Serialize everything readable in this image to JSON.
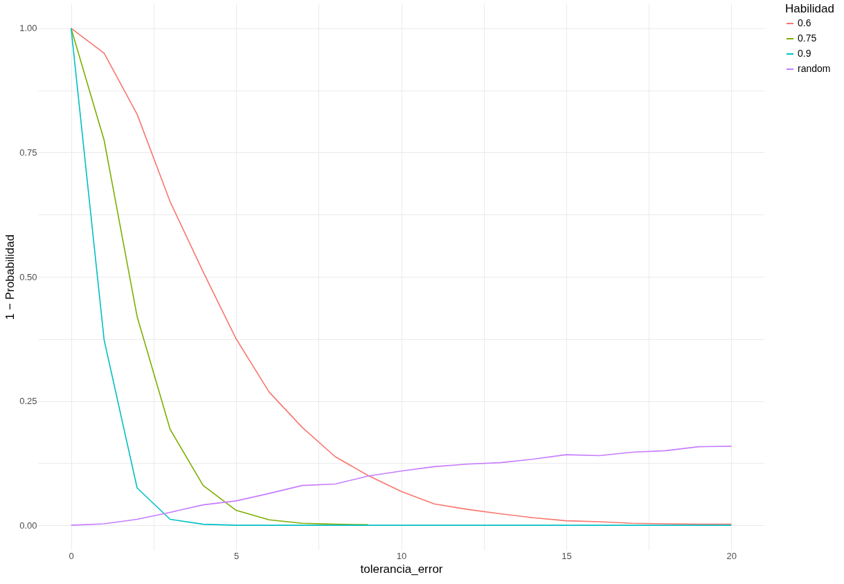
{
  "chart_data": {
    "type": "line",
    "xlabel": "tolerancia_error",
    "ylabel": "1 − Probabilidad",
    "legend_title": "Habilidad",
    "legend": "right",
    "grid": true,
    "line_style": "solid",
    "x": [
      0,
      1,
      2,
      3,
      4,
      5,
      6,
      7,
      8,
      9,
      10,
      11,
      12,
      13,
      14,
      15,
      16,
      17,
      18,
      19,
      20
    ],
    "xlim": [
      -1,
      21
    ],
    "ylim": [
      -0.05,
      1.05
    ],
    "xticks": [
      0,
      {
        "value": 2.5,
        "label": null
      },
      5,
      {
        "value": 7.5,
        "label": null
      },
      10,
      {
        "value": 12.5,
        "label": null
      },
      15,
      {
        "value": 17.5,
        "label": null
      },
      20
    ],
    "yticks": [
      {
        "value": 0,
        "label": "0.00"
      },
      {
        "value": 0.125,
        "label": null
      },
      {
        "value": 0.25,
        "label": "0.25"
      },
      {
        "value": 0.375,
        "label": null
      },
      {
        "value": 0.5,
        "label": "0.50"
      },
      {
        "value": 0.625,
        "label": null
      },
      {
        "value": 0.75,
        "label": "0.75"
      },
      {
        "value": 0.875,
        "label": null
      },
      {
        "value": 1,
        "label": "1.00"
      }
    ],
    "series": [
      {
        "name": "0.6",
        "color": "#f8766d",
        "values": [
          1.0,
          0.95,
          0.827,
          0.651,
          0.51,
          0.375,
          0.268,
          0.197,
          0.138,
          0.1,
          0.068,
          0.043,
          0.032,
          0.023,
          0.015,
          0.009,
          0.007,
          0.004,
          0.003,
          0.002,
          0.002
        ]
      },
      {
        "name": "0.75",
        "color": "#7cae00",
        "values": [
          1.0,
          0.775,
          0.42,
          0.193,
          0.08,
          0.03,
          0.011,
          0.004,
          0.002,
          0.001,
          null,
          null,
          null,
          null,
          null,
          null,
          null,
          null,
          null,
          null,
          null
        ]
      },
      {
        "name": "0.9",
        "color": "#00bfc4",
        "values": [
          1.0,
          0.373,
          0.075,
          0.012,
          0.002,
          0,
          0,
          0,
          0,
          0,
          0,
          0,
          0,
          0,
          0,
          0,
          0,
          0,
          0,
          0,
          0
        ]
      },
      {
        "name": "random",
        "color": "#c77cff",
        "values": [
          0,
          0.003,
          0.012,
          0.026,
          0.041,
          0.049,
          0.064,
          0.08,
          0.083,
          0.099,
          0.109,
          0.118,
          0.123,
          0.126,
          0.133,
          0.142,
          0.14,
          0.147,
          0.15,
          0.158,
          0.159
        ]
      }
    ]
  }
}
